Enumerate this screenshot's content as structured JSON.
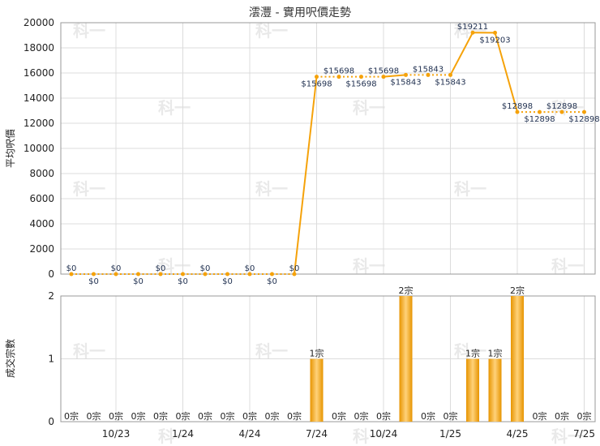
{
  "chart_data": [
    {
      "type": "line",
      "title": "澐灃 - 實用呎價走勢",
      "ylabel": "平均呎價",
      "ylim": [
        0,
        20000
      ],
      "yticks": [
        "0",
        "2000",
        "4000",
        "6000",
        "8000",
        "10000",
        "12000",
        "14000",
        "16000",
        "18000",
        "20000"
      ],
      "x": [
        "2023-08",
        "2023-09",
        "2023-10",
        "2023-11",
        "2023-12",
        "2024-01",
        "2024-02",
        "2024-03",
        "2024-04",
        "2024-05",
        "2024-06",
        "2024-07",
        "2024-08",
        "2024-09",
        "2024-10",
        "2024-11",
        "2024-12",
        "2025-01",
        "2025-02",
        "2025-03",
        "2025-04",
        "2025-05",
        "2025-06",
        "2025-07"
      ],
      "series": [
        {
          "values": [
            0,
            0,
            0,
            0,
            0,
            0,
            0,
            0,
            0,
            0,
            0,
            15698,
            15698,
            15698,
            15698,
            15843,
            15843,
            15843,
            19211,
            19203,
            12898,
            12898,
            12898,
            12898
          ],
          "data_labels": [
            "$0",
            "$0",
            "$0",
            "$0",
            "$0",
            "$0",
            "$0",
            "$0",
            "$0",
            "$0",
            "$0",
            "$15698",
            "$15698",
            "$15698",
            "$15698",
            "$15843",
            "$15843",
            "$15843",
            "$19211",
            "$19203",
            "$12898",
            "$12898",
            "$12898",
            "$12898"
          ],
          "color": "#f5a20a"
        }
      ],
      "grid": true
    },
    {
      "type": "bar",
      "ylabel": "成交宗數",
      "ylim": [
        0,
        2
      ],
      "yticks": [
        "0",
        "1",
        "2"
      ],
      "x": [
        "2023-08",
        "2023-09",
        "2023-10",
        "2023-11",
        "2023-12",
        "2024-01",
        "2024-02",
        "2024-03",
        "2024-04",
        "2024-05",
        "2024-06",
        "2024-07",
        "2024-08",
        "2024-09",
        "2024-10",
        "2024-11",
        "2024-12",
        "2025-01",
        "2025-02",
        "2025-03",
        "2025-04",
        "2025-05",
        "2025-06",
        "2025-07"
      ],
      "xtick_labels": [
        "10/23",
        "1/24",
        "4/24",
        "7/24",
        "10/24",
        "1/25",
        "4/25",
        "7/25"
      ],
      "xtick_months": [
        "2023-10",
        "2024-01",
        "2024-04",
        "2024-07",
        "2024-10",
        "2025-01",
        "2025-04",
        "2025-07"
      ],
      "series": [
        {
          "values": [
            0,
            0,
            0,
            0,
            0,
            0,
            0,
            0,
            0,
            0,
            0,
            1,
            0,
            0,
            0,
            2,
            0,
            0,
            1,
            1,
            2,
            0,
            0,
            0
          ],
          "data_labels": [
            "0宗",
            "0宗",
            "0宗",
            "0宗",
            "0宗",
            "0宗",
            "0宗",
            "0宗",
            "0宗",
            "0宗",
            "0宗",
            "1宗",
            "0宗",
            "0宗",
            "0宗",
            "2宗",
            "0宗",
            "0宗",
            "1宗",
            "1宗",
            "2宗",
            "0宗",
            "0宗",
            "0宗"
          ],
          "color": "#f0a81c"
        }
      ],
      "grid": true
    }
  ],
  "watermark": "科一"
}
